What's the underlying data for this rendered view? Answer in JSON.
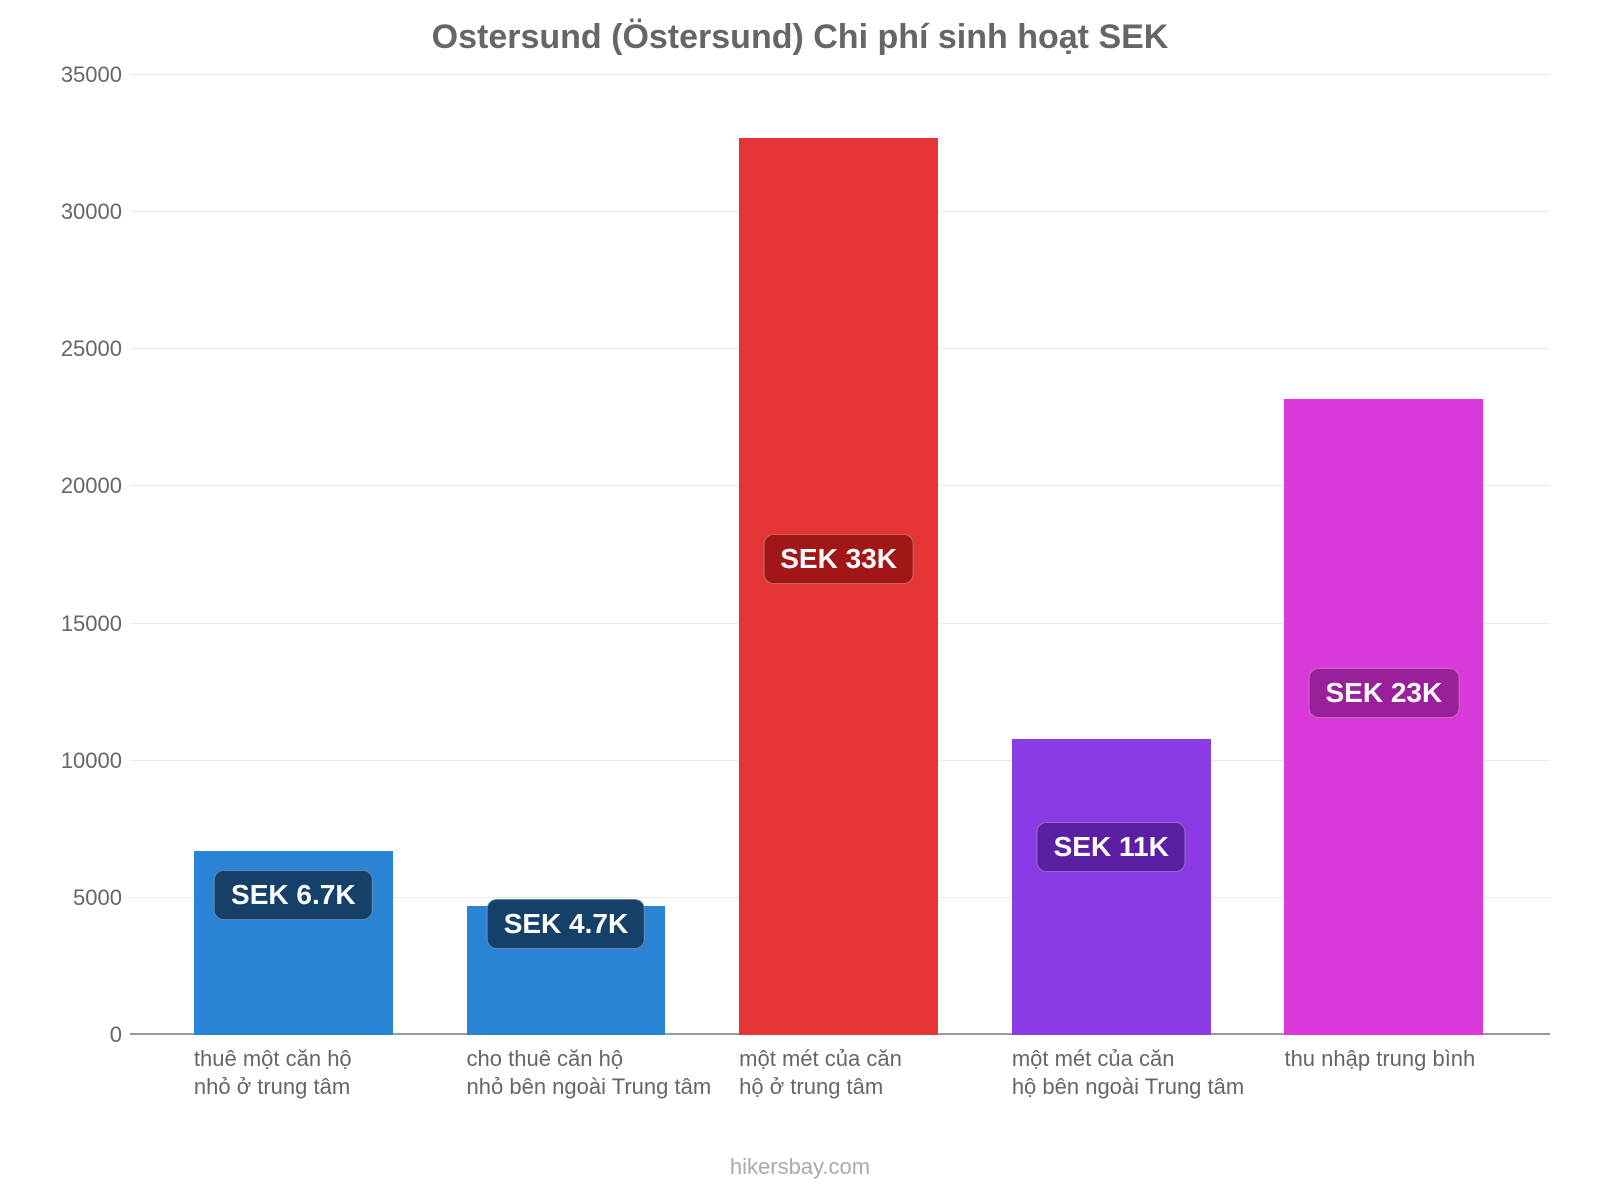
{
  "chart": {
    "type": "bar",
    "title": "Ostersund (Östersund) Chi phí sinh hoạt SEK",
    "title_fontsize": 34,
    "title_color": "#666666",
    "background_color": "#ffffff",
    "footer": "hikersbay.com",
    "footer_color": "#aaaaaa",
    "y_axis": {
      "min": 0,
      "max": 35000,
      "tick_step": 5000,
      "ticks": [
        "0",
        "5000",
        "10000",
        "15000",
        "20000",
        "25000",
        "30000",
        "35000"
      ],
      "label_fontsize": 22,
      "label_color": "#666666",
      "grid_color": "#e9e9e9",
      "baseline_color": "#999999"
    },
    "x_axis": {
      "label_fontsize": 22,
      "label_color": "#666666"
    },
    "bars": [
      {
        "category_line1": "thuê một căn hộ",
        "category_line2": "nhỏ ở trung tâm",
        "value": 6700,
        "value_label": "SEK 6.7K",
        "bar_color": "#2a84d6",
        "badge_bg": "#15406a",
        "center_pct": 11.5,
        "width_pct": 14,
        "badge_bottom_pct": 12
      },
      {
        "category_line1": "cho thuê căn hộ",
        "category_line2": "nhỏ bên ngoài Trung tâm",
        "value": 4700,
        "value_label": "SEK 4.7K",
        "bar_color": "#2a84d6",
        "badge_bg": "#15406a",
        "center_pct": 30.7,
        "width_pct": 14,
        "badge_bottom_pct": 9
      },
      {
        "category_line1": "một mét của căn",
        "category_line2": "hộ ở trung tâm",
        "value": 32700,
        "value_label": "SEK 33K",
        "bar_color": "#e53434",
        "badge_bg": "#a11616",
        "center_pct": 49.9,
        "width_pct": 14,
        "badge_bottom_pct": 47
      },
      {
        "category_line1": "một mét của căn",
        "category_line2": "hộ bên ngoài Trung tâm",
        "value": 10800,
        "value_label": "SEK 11K",
        "bar_color": "#8b3be6",
        "badge_bg": "#5a1fa3",
        "center_pct": 69.1,
        "width_pct": 14,
        "badge_bottom_pct": 17
      },
      {
        "category_line1": "thu nhập trung bình",
        "category_line2": "",
        "value": 23200,
        "value_label": "SEK 23K",
        "bar_color": "#da3ada",
        "badge_bg": "#9a1f9a",
        "center_pct": 88.3,
        "width_pct": 14,
        "badge_bottom_pct": 33
      }
    ]
  }
}
